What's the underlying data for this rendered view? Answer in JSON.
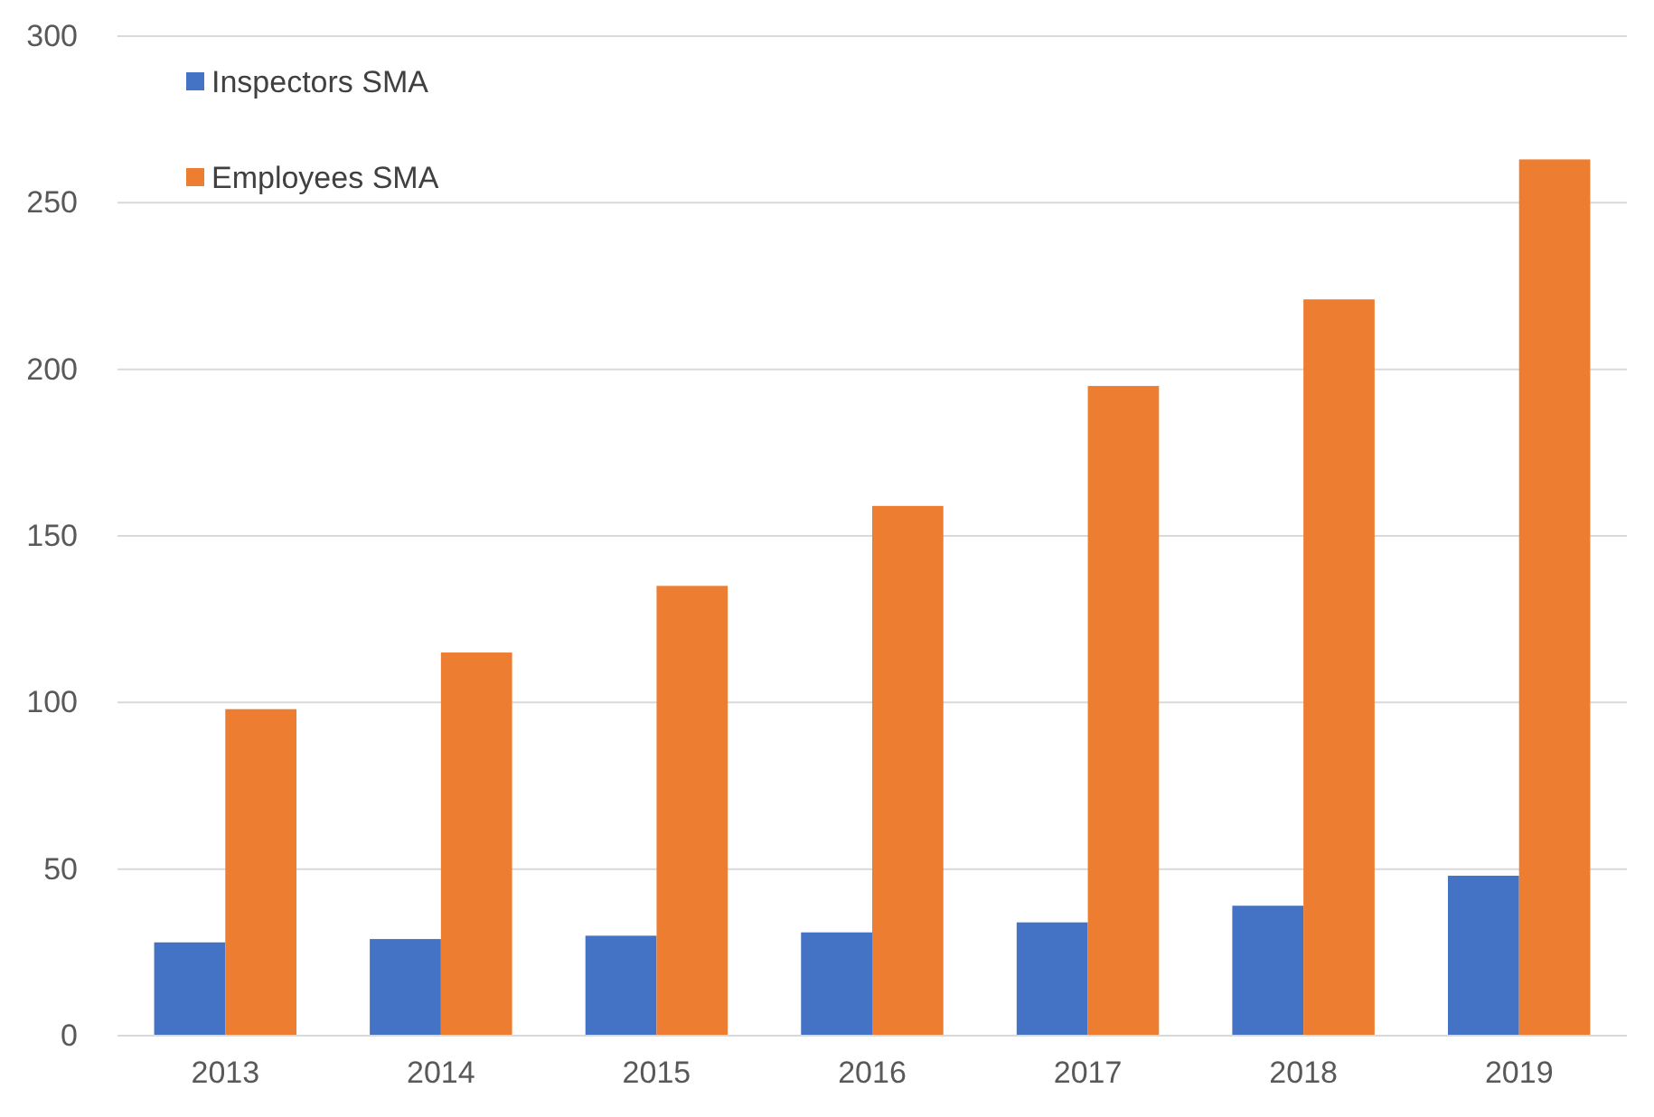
{
  "chart_data": {
    "type": "bar",
    "categories": [
      "2013",
      "2014",
      "2015",
      "2016",
      "2017",
      "2018",
      "2019"
    ],
    "series": [
      {
        "name": "Inspectors SMA",
        "color": "#4472c4",
        "values": [
          28,
          29,
          30,
          31,
          34,
          39,
          48
        ]
      },
      {
        "name": "Employees SMA",
        "color": "#ed7d31",
        "values": [
          98,
          115,
          135,
          159,
          195,
          221,
          263
        ]
      }
    ],
    "ylim": [
      0,
      300
    ],
    "yticks": [
      0,
      50,
      100,
      150,
      200,
      250,
      300
    ],
    "grid": "y",
    "legend": "top left"
  }
}
